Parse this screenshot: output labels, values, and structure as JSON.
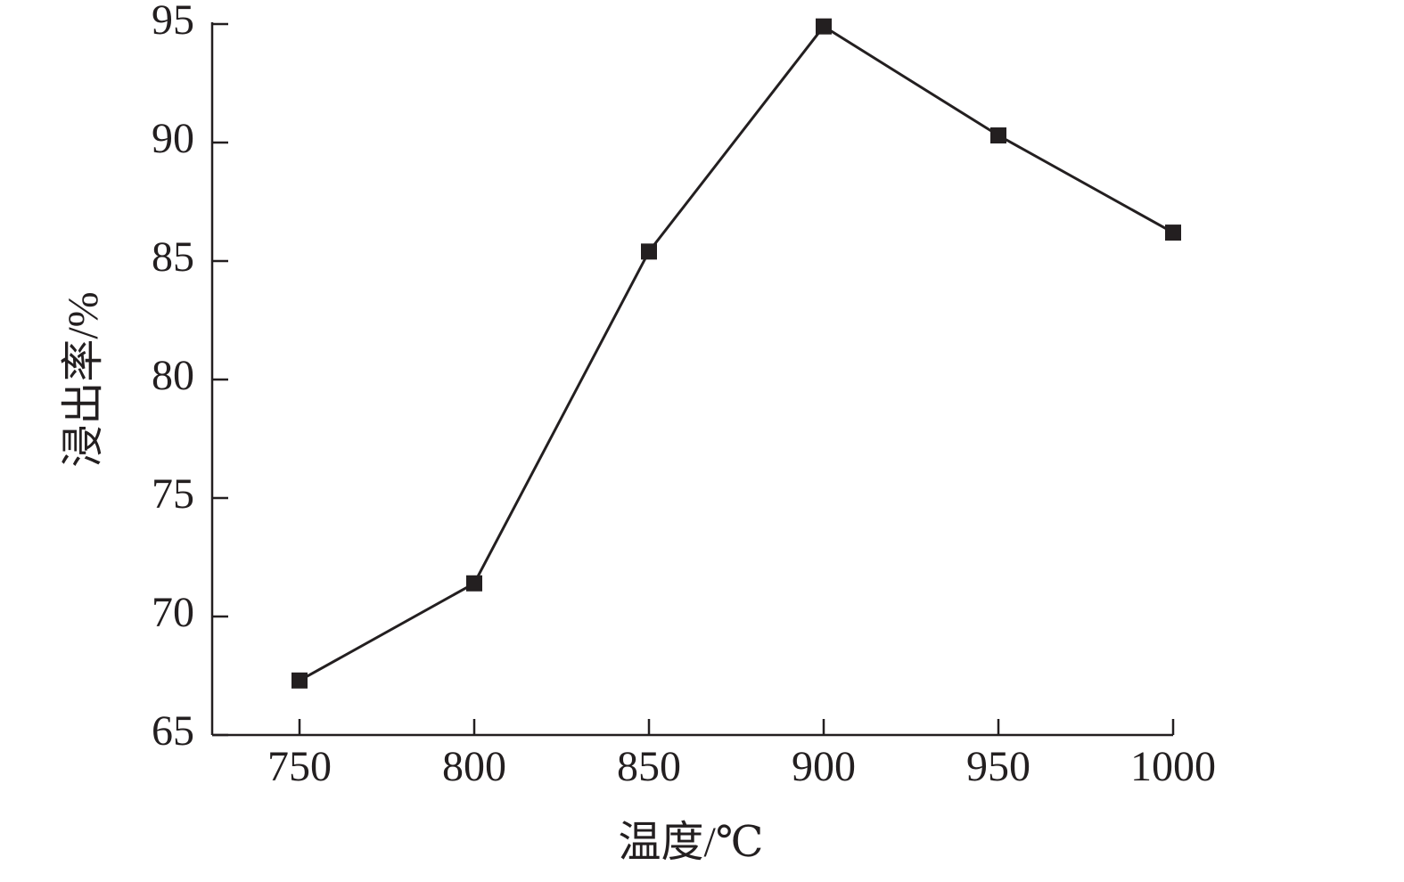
{
  "chart_data": {
    "type": "line",
    "x_label": "温度/℃",
    "y_label": "浸出率/%",
    "x": [
      750,
      800,
      850,
      900,
      950,
      1000
    ],
    "series": [
      {
        "name": "浸出率",
        "color": "#231f20",
        "values": [
          67.3,
          71.4,
          85.4,
          94.9,
          90.3,
          86.2
        ]
      }
    ],
    "xlim": [
      725,
      1000
    ],
    "xticks": [
      750,
      800,
      850,
      900,
      950,
      1000
    ],
    "ylim": [
      65,
      95
    ],
    "yticks": [
      65,
      70,
      75,
      80,
      85,
      90,
      95
    ],
    "marker": "square",
    "grid": false
  }
}
